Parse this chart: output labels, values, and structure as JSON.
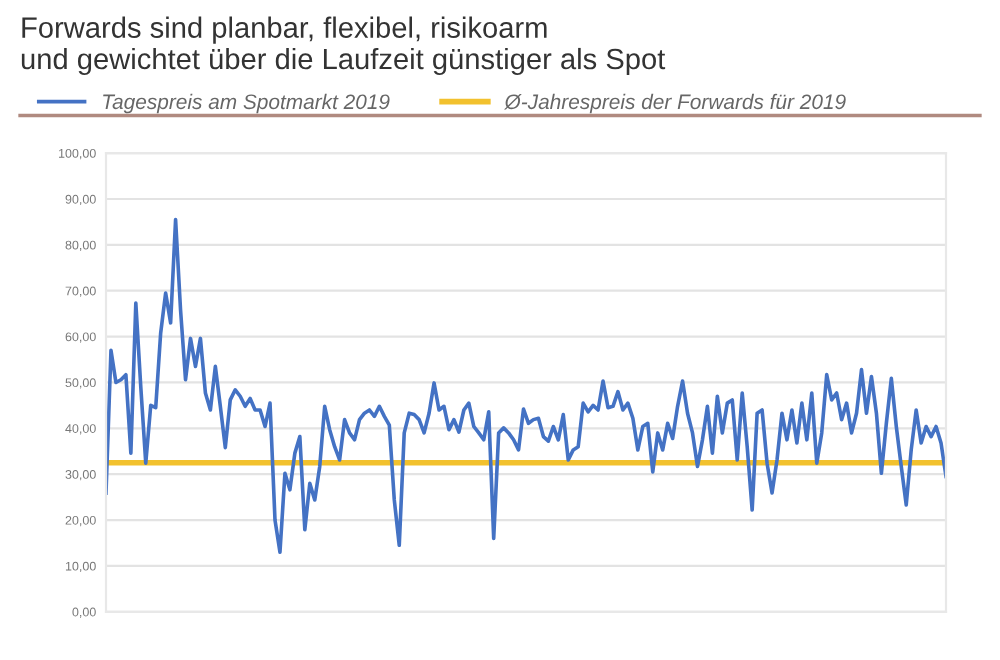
{
  "chart_data": {
    "type": "line",
    "title": "Forwards sind planbar, flexibel, risikoarm\nund gewichtet über die Laufzeit günstiger als Spot",
    "categories": [
      null,
      null,
      null,
      null,
      null,
      null,
      null,
      null,
      null,
      null,
      null,
      null,
      null,
      null,
      null,
      null,
      null,
      null,
      null,
      null,
      null,
      null,
      null,
      null,
      null,
      null,
      null,
      null,
      null,
      null,
      null,
      null,
      null,
      null,
      null,
      null,
      null,
      null,
      null,
      null,
      null,
      null,
      null,
      null,
      null,
      null,
      null,
      null,
      null,
      null,
      null,
      null,
      null,
      null,
      null,
      null,
      null,
      null,
      null,
      null,
      null,
      null,
      null,
      null,
      null,
      null,
      null,
      null,
      null,
      null,
      null,
      null,
      null,
      null,
      null,
      null,
      null,
      null,
      null,
      null,
      null,
      null,
      null,
      null,
      null,
      null,
      null,
      null,
      null,
      null,
      null,
      null,
      null,
      null,
      null,
      null,
      null,
      null,
      null,
      null,
      null,
      null,
      null,
      null,
      null,
      null,
      null,
      null,
      null,
      null,
      null,
      null,
      null,
      null,
      null,
      null,
      null,
      null,
      null,
      null,
      null,
      null,
      null,
      null,
      null,
      null,
      null,
      null,
      null,
      null,
      null,
      null,
      null,
      null,
      null,
      null,
      null,
      null,
      null,
      null,
      null,
      null,
      null,
      null,
      null,
      null,
      null,
      null,
      null,
      null,
      null,
      null,
      null,
      null,
      null,
      null,
      null,
      null,
      null,
      null,
      null,
      null,
      null,
      null,
      null,
      null,
      null,
      null,
      null,
      null
    ],
    "series": [
      {
        "name": "Tagespreis am Spotmarkt 2019",
        "color": "#4472c4",
        "values": [
          25.9,
          57,
          50,
          50.6,
          51.7,
          34.6,
          67.3,
          49,
          32.4,
          45,
          44.5,
          60.8,
          69.5,
          63,
          85.5,
          65.8,
          50.6,
          59.6,
          53.5,
          59.6,
          47.7,
          44,
          53.5,
          44.8,
          35.8,
          46.2,
          48.4,
          47,
          44.8,
          46.5,
          44,
          44,
          40.4,
          45.5,
          20,
          13,
          30.2,
          26.6,
          34.6,
          38.2,
          17.9,
          28,
          24.4,
          31.7,
          44.8,
          39.7,
          36,
          33.1,
          41.9,
          39,
          37.5,
          41.9,
          43.3,
          44,
          42.6,
          44.8,
          42.6,
          40.7,
          24.4,
          14.5,
          39,
          43.3,
          43,
          41.9,
          39,
          43.3,
          49.9,
          44,
          44.8,
          39.7,
          41.9,
          39.2,
          44,
          45.5,
          40.4,
          39,
          37.5,
          43.6,
          16,
          39,
          40.1,
          39,
          37.5,
          35.3,
          44.2,
          41.1,
          41.9,
          42.2,
          38.2,
          37.2,
          40.4,
          37.5,
          43,
          33.1,
          35.3,
          36,
          45.5,
          43.6,
          45,
          44,
          50.3,
          44.5,
          44.8,
          48,
          44,
          45.5,
          42.2,
          35.3,
          40.4,
          41.1,
          30.5,
          39,
          35.3,
          41.1,
          37.8,
          44.8,
          50.3,
          43.3,
          39,
          31.7,
          37.5,
          44.8,
          34.6,
          47,
          39,
          45.5,
          46.2,
          33.1,
          47.7,
          36,
          22.2,
          43.3,
          44,
          32.4,
          25.9,
          33.1,
          43.3,
          37.5,
          44,
          36.8,
          45.5,
          37.5,
          47.7,
          32.4,
          39,
          51.7,
          46.2,
          47.7,
          41.9,
          45.5,
          39,
          43.3,
          52.8,
          43.3,
          51.3,
          43.3,
          30.2,
          41.1,
          50.9,
          40.4,
          31.7,
          23.3,
          35.3,
          44,
          36.8,
          40.4,
          38.2,
          40.4,
          36.8,
          29.5
        ]
      }
    ],
    "ref_lines": [
      {
        "axis": "y",
        "value": 32.5,
        "label": "Ø-Jahrespreis der Forwards für 2019",
        "color": "#f2c12e"
      }
    ],
    "ylim": [
      0,
      100
    ],
    "yticks": [
      {
        "value": 0,
        "label": "0,00"
      },
      {
        "value": 10,
        "label": "10,00"
      },
      {
        "value": 20,
        "label": "20,00"
      },
      {
        "value": 30,
        "label": "30,00"
      },
      {
        "value": 40,
        "label": "40,00"
      },
      {
        "value": 50,
        "label": "50,00"
      },
      {
        "value": 60,
        "label": "60,00"
      },
      {
        "value": 70,
        "label": "70,00"
      },
      {
        "value": 80,
        "label": "80,00"
      },
      {
        "value": 90,
        "label": "90,00"
      },
      {
        "value": 100,
        "label": "100,00"
      }
    ],
    "tick_labels": "y",
    "grid": "y",
    "legend": "top left",
    "line_style": "solid",
    "marker": "none"
  }
}
